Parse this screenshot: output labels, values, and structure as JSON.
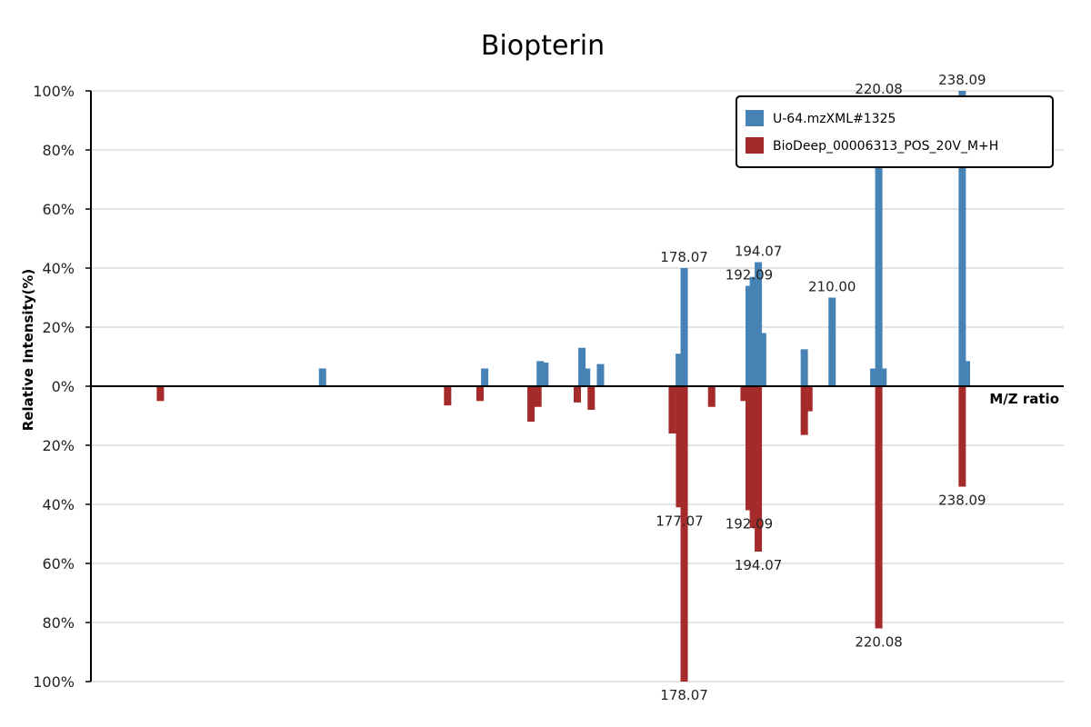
{
  "chart_data": {
    "type": "bar",
    "title": "Biopterin",
    "xlabel": "M/Z ratio",
    "ylabel": "Relative Intensity(%)",
    "xlim": [
      50,
      260
    ],
    "ylim_top": [
      0,
      100
    ],
    "ylim_bottom": [
      0,
      100
    ],
    "y_ticks_top": [
      "0%",
      "20%",
      "40%",
      "60%",
      "80%",
      "100%"
    ],
    "y_ticks_bottom": [
      "20%",
      "40%",
      "60%",
      "80%",
      "100%"
    ],
    "grid": true,
    "legend_position": "top-right",
    "series": [
      {
        "name": "U-64.mzXML#1325",
        "color": "#4682b4",
        "direction": "up",
        "peaks": [
          {
            "mz": 100.0,
            "value": 6
          },
          {
            "mz": 135.0,
            "value": 6
          },
          {
            "mz": 147.0,
            "value": 8.5
          },
          {
            "mz": 148.0,
            "value": 8
          },
          {
            "mz": 156.0,
            "value": 13
          },
          {
            "mz": 157.0,
            "value": 6
          },
          {
            "mz": 160.0,
            "value": 7.5
          },
          {
            "mz": 177.0,
            "value": 11
          },
          {
            "mz": 178.07,
            "value": 40,
            "label": "178.07"
          },
          {
            "mz": 192.09,
            "value": 34,
            "label": "192.09"
          },
          {
            "mz": 193.0,
            "value": 37
          },
          {
            "mz": 194.07,
            "value": 42,
            "label": "194.07"
          },
          {
            "mz": 195.0,
            "value": 18
          },
          {
            "mz": 204.0,
            "value": 12.5
          },
          {
            "mz": 210.0,
            "value": 30,
            "label": "210.00"
          },
          {
            "mz": 219.0,
            "value": 6
          },
          {
            "mz": 220.08,
            "value": 97,
            "label": "220.08"
          },
          {
            "mz": 221.0,
            "value": 6
          },
          {
            "mz": 238.09,
            "value": 100,
            "label": "238.09"
          },
          {
            "mz": 239.0,
            "value": 8.5
          }
        ]
      },
      {
        "name": "BioDeep_00006313_POS_20V_M+H",
        "color": "#a52a2a",
        "direction": "down",
        "peaks": [
          {
            "mz": 65.0,
            "value": 5
          },
          {
            "mz": 127.0,
            "value": 6.5
          },
          {
            "mz": 134.0,
            "value": 5
          },
          {
            "mz": 145.0,
            "value": 12
          },
          {
            "mz": 146.5,
            "value": 7
          },
          {
            "mz": 155.0,
            "value": 5.5
          },
          {
            "mz": 158.0,
            "value": 8
          },
          {
            "mz": 175.5,
            "value": 16
          },
          {
            "mz": 177.07,
            "value": 41,
            "label": "177.07"
          },
          {
            "mz": 178.07,
            "value": 100,
            "label": "178.07"
          },
          {
            "mz": 184.0,
            "value": 7
          },
          {
            "mz": 191.0,
            "value": 5
          },
          {
            "mz": 192.09,
            "value": 42,
            "label": "192.09"
          },
          {
            "mz": 193.0,
            "value": 48
          },
          {
            "mz": 194.07,
            "value": 56,
            "label": "194.07"
          },
          {
            "mz": 204.0,
            "value": 16.5
          },
          {
            "mz": 205.0,
            "value": 8.5
          },
          {
            "mz": 220.08,
            "value": 82,
            "label": "220.08"
          },
          {
            "mz": 238.09,
            "value": 34,
            "label": "238.09"
          }
        ]
      }
    ]
  }
}
